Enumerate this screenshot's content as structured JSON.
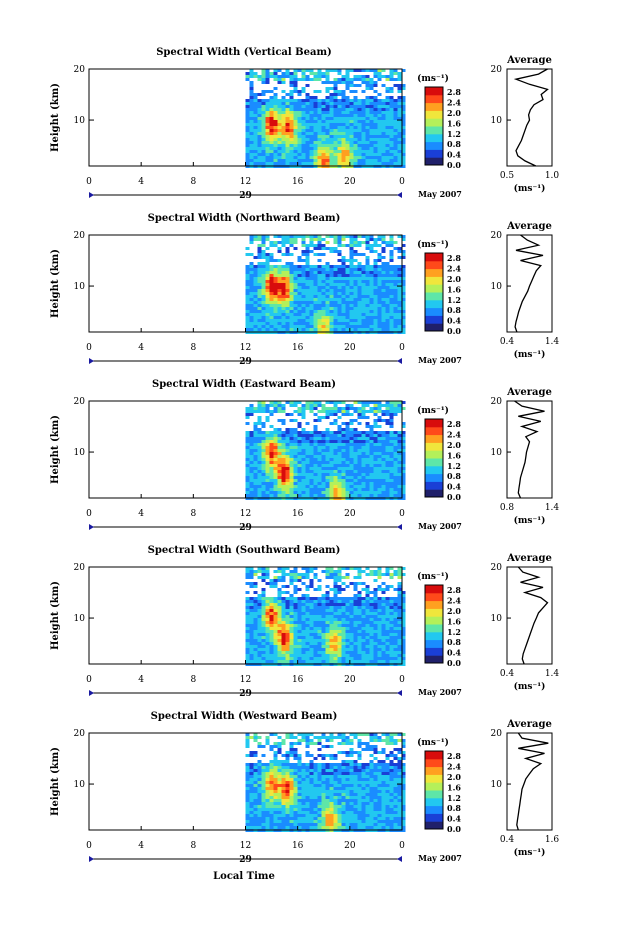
{
  "figure": {
    "x_caption": "Local Time",
    "date_label": "May 2007",
    "colorbar_unit": "(ms⁻¹)",
    "avg_unit": "(ms⁻¹)",
    "avg_title": "Average",
    "colorbar_ticks": [
      "0.0",
      "0.4",
      "0.8",
      "1.2",
      "1.6",
      "2.0",
      "2.4",
      "2.8"
    ],
    "colorbar_colors": [
      "#20206a",
      "#1a3fd6",
      "#1a8cff",
      "#22c8f0",
      "#5ee6a8",
      "#b4f05a",
      "#f0e63c",
      "#ffa020",
      "#ff4a1a",
      "#d80c0c"
    ]
  },
  "chart_data": [
    {
      "type": "heatmap",
      "title": "Spectral Width (Vertical Beam)",
      "ylabel": "Height (km)",
      "xlabel": "Local Time",
      "x_ticks": [
        "0",
        "4",
        "8",
        "12",
        "16",
        "20",
        "0"
      ],
      "y_ticks": [
        "20",
        "10"
      ],
      "x_range_hours": [
        0,
        24
      ],
      "data_start_hour": 12,
      "ylim_km": [
        1,
        20
      ],
      "day_marker": "29",
      "colorbar_range": [
        0.0,
        3.0
      ],
      "features": [
        {
          "hour": 14.0,
          "height_km": 9.0,
          "width_ms": 2.8
        },
        {
          "hour": 15.3,
          "height_km": 8.5,
          "width_ms": 2.6
        },
        {
          "hour": 18.0,
          "height_km": 2.0,
          "width_ms": 2.4
        },
        {
          "hour": 19.6,
          "height_km": 3.0,
          "width_ms": 2.2
        }
      ],
      "average_profile": {
        "title": "Average",
        "xlim": [
          0.5,
          1.0
        ],
        "x_ticks": [
          "0.5",
          "1.0"
        ],
        "y_ticks": [
          "20",
          "10"
        ],
        "height_km": [
          1,
          2,
          3,
          4,
          5,
          6,
          7,
          8,
          9,
          10,
          11,
          12,
          13,
          14,
          15,
          16,
          17,
          18,
          19,
          20
        ],
        "values": [
          0.82,
          0.7,
          0.62,
          0.6,
          0.63,
          0.66,
          0.68,
          0.7,
          0.72,
          0.75,
          0.74,
          0.76,
          0.8,
          0.9,
          0.88,
          0.95,
          0.75,
          0.6,
          0.85,
          0.95
        ]
      }
    },
    {
      "type": "heatmap",
      "title": "Spectral Width (Northward Beam)",
      "ylabel": "Height (km)",
      "xlabel": "Local Time",
      "x_ticks": [
        "0",
        "4",
        "8",
        "12",
        "16",
        "20",
        "0"
      ],
      "y_ticks": [
        "20",
        "10"
      ],
      "x_range_hours": [
        0,
        24
      ],
      "data_start_hour": 12,
      "ylim_km": [
        1,
        20
      ],
      "day_marker": "29",
      "colorbar_range": [
        0.0,
        3.0
      ],
      "features": [
        {
          "hour": 14.0,
          "height_km": 10.0,
          "width_ms": 2.8
        },
        {
          "hour": 15.0,
          "height_km": 9.5,
          "width_ms": 2.6
        },
        {
          "hour": 18.0,
          "height_km": 1.5,
          "width_ms": 2.0
        }
      ],
      "average_profile": {
        "title": "Average",
        "xlim": [
          0.4,
          1.4
        ],
        "x_ticks": [
          "0.4",
          "1.4"
        ],
        "y_ticks": [
          "20",
          "10"
        ],
        "height_km": [
          1,
          2,
          3,
          4,
          5,
          6,
          7,
          8,
          9,
          10,
          11,
          12,
          13,
          14,
          15,
          16,
          17,
          18,
          19,
          20
        ],
        "values": [
          0.62,
          0.58,
          0.6,
          0.63,
          0.66,
          0.7,
          0.74,
          0.8,
          0.86,
          0.9,
          0.95,
          1.0,
          1.05,
          1.15,
          0.7,
          1.2,
          0.6,
          1.1,
          0.85,
          0.7
        ]
      }
    },
    {
      "type": "heatmap",
      "title": "Spectral Width (Eastward Beam)",
      "ylabel": "Height (km)",
      "xlabel": "Local Time",
      "x_ticks": [
        "0",
        "4",
        "8",
        "12",
        "16",
        "20",
        "0"
      ],
      "y_ticks": [
        "20",
        "10"
      ],
      "x_range_hours": [
        0,
        24
      ],
      "data_start_hour": 12,
      "ylim_km": [
        1,
        20
      ],
      "day_marker": "29",
      "colorbar_range": [
        0.0,
        3.0
      ],
      "features": [
        {
          "hour": 14.0,
          "height_km": 10.0,
          "width_ms": 2.6
        },
        {
          "hour": 15.0,
          "height_km": 6.0,
          "width_ms": 2.8
        },
        {
          "hour": 19.0,
          "height_km": 1.8,
          "width_ms": 2.2
        }
      ],
      "average_profile": {
        "title": "Average",
        "xlim": [
          0.8,
          1.4
        ],
        "x_ticks": [
          "0.8",
          "1.4"
        ],
        "y_ticks": [
          "20",
          "10"
        ],
        "height_km": [
          1,
          2,
          3,
          4,
          5,
          6,
          7,
          8,
          9,
          10,
          11,
          12,
          13,
          14,
          15,
          16,
          17,
          18,
          19,
          20
        ],
        "values": [
          0.98,
          0.95,
          0.96,
          0.97,
          0.98,
          1.0,
          1.02,
          1.04,
          1.05,
          1.06,
          1.08,
          1.1,
          1.05,
          1.2,
          1.0,
          1.25,
          0.95,
          1.3,
          1.0,
          0.9
        ]
      }
    },
    {
      "type": "heatmap",
      "title": "Spectral Width (Southward Beam)",
      "ylabel": "Height (km)",
      "xlabel": "Local Time",
      "x_ticks": [
        "0",
        "4",
        "8",
        "12",
        "16",
        "20",
        "0"
      ],
      "y_ticks": [
        "20",
        "10"
      ],
      "x_range_hours": [
        0,
        24
      ],
      "data_start_hour": 12,
      "ylim_km": [
        1,
        20
      ],
      "day_marker": "29",
      "colorbar_range": [
        0.0,
        3.0
      ],
      "features": [
        {
          "hour": 14.0,
          "height_km": 10.5,
          "width_ms": 2.6
        },
        {
          "hour": 15.0,
          "height_km": 6.0,
          "width_ms": 2.8
        },
        {
          "hour": 18.8,
          "height_km": 5.0,
          "width_ms": 2.2
        }
      ],
      "average_profile": {
        "title": "Average",
        "xlim": [
          0.4,
          1.4
        ],
        "x_ticks": [
          "0.4",
          "1.4"
        ],
        "y_ticks": [
          "20",
          "10"
        ],
        "height_km": [
          1,
          2,
          3,
          4,
          5,
          6,
          7,
          8,
          9,
          10,
          11,
          12,
          13,
          14,
          15,
          16,
          17,
          18,
          19,
          20
        ],
        "values": [
          0.78,
          0.74,
          0.76,
          0.8,
          0.84,
          0.88,
          0.92,
          0.96,
          1.0,
          1.05,
          1.1,
          1.2,
          1.3,
          1.15,
          0.8,
          1.2,
          0.7,
          1.1,
          0.75,
          0.65
        ]
      }
    },
    {
      "type": "heatmap",
      "title": "Spectral Width (Westward Beam)",
      "ylabel": "Height (km)",
      "xlabel": "Local Time",
      "x_ticks": [
        "0",
        "4",
        "8",
        "12",
        "16",
        "20",
        "0"
      ],
      "y_ticks": [
        "20",
        "10"
      ],
      "x_range_hours": [
        0,
        24
      ],
      "data_start_hour": 12,
      "ylim_km": [
        1,
        20
      ],
      "day_marker": "29",
      "colorbar_range": [
        0.0,
        3.0
      ],
      "features": [
        {
          "hour": 14.0,
          "height_km": 10.0,
          "width_ms": 2.4
        },
        {
          "hour": 15.2,
          "height_km": 9.0,
          "width_ms": 2.6
        },
        {
          "hour": 18.5,
          "height_km": 3.0,
          "width_ms": 2.2
        }
      ],
      "average_profile": {
        "title": "Average",
        "xlim": [
          0.4,
          1.6
        ],
        "x_ticks": [
          "0.4",
          "1.6"
        ],
        "y_ticks": [
          "20",
          "10"
        ],
        "height_km": [
          1,
          2,
          3,
          4,
          5,
          6,
          7,
          8,
          9,
          10,
          11,
          12,
          13,
          14,
          15,
          16,
          17,
          18,
          19,
          20
        ],
        "values": [
          0.7,
          0.66,
          0.68,
          0.7,
          0.72,
          0.74,
          0.76,
          0.78,
          0.8,
          0.85,
          0.9,
          1.0,
          1.1,
          1.3,
          0.9,
          1.4,
          0.7,
          1.5,
          0.8,
          0.7
        ]
      }
    }
  ]
}
